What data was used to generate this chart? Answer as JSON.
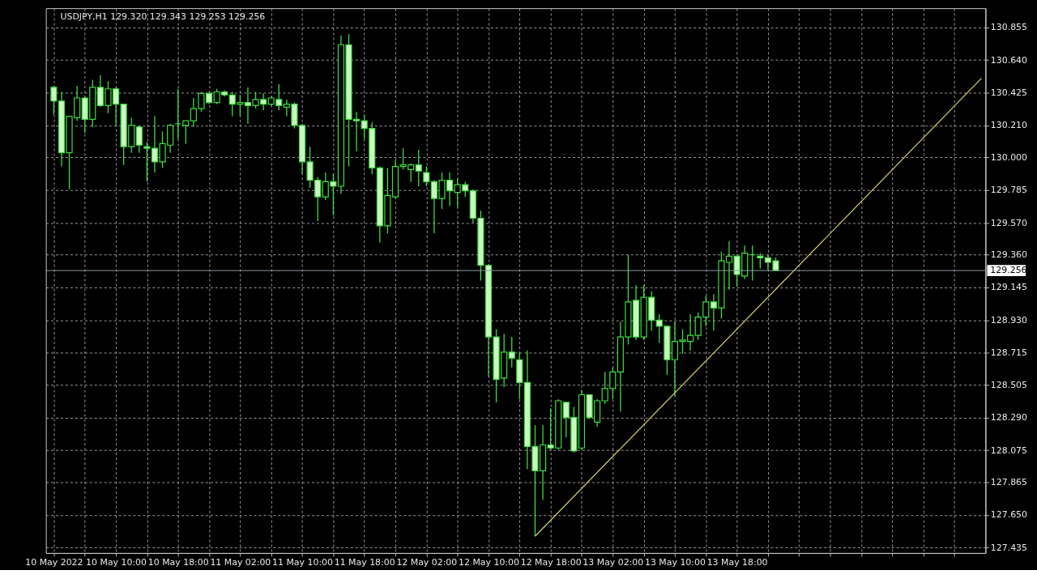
{
  "chart_data": {
    "type": "candlestick",
    "title": "USDJPY,H1  129.320 129.343 129.253 129.256",
    "color": "#3fdc3f",
    "grid": true,
    "x": [
      "2022-05-10T02:00",
      "2022-05-10T03:00",
      "2022-05-10T04:00",
      "2022-05-10T05:00",
      "2022-05-10T06:00",
      "2022-05-10T07:00",
      "2022-05-10T08:00",
      "2022-05-10T09:00",
      "2022-05-10T10:00",
      "2022-05-10T11:00",
      "2022-05-10T12:00",
      "2022-05-10T13:00",
      "2022-05-10T14:00",
      "2022-05-10T15:00",
      "2022-05-10T16:00",
      "2022-05-10T17:00",
      "2022-05-10T18:00",
      "2022-05-10T19:00",
      "2022-05-10T20:00",
      "2022-05-10T21:00",
      "2022-05-10T22:00",
      "2022-05-10T23:00",
      "2022-05-11T00:00",
      "2022-05-11T01:00",
      "2022-05-11T02:00",
      "2022-05-11T03:00",
      "2022-05-11T04:00",
      "2022-05-11T05:00",
      "2022-05-11T06:00",
      "2022-05-11T07:00",
      "2022-05-11T08:00",
      "2022-05-11T09:00",
      "2022-05-11T10:00",
      "2022-05-11T11:00",
      "2022-05-11T12:00",
      "2022-05-11T13:00",
      "2022-05-11T14:00",
      "2022-05-11T15:00",
      "2022-05-11T16:00",
      "2022-05-11T17:00",
      "2022-05-11T18:00",
      "2022-05-11T19:00",
      "2022-05-11T20:00",
      "2022-05-11T21:00",
      "2022-05-11T22:00",
      "2022-05-11T23:00",
      "2022-05-12T00:00",
      "2022-05-12T01:00",
      "2022-05-12T02:00",
      "2022-05-12T03:00",
      "2022-05-12T04:00",
      "2022-05-12T05:00",
      "2022-05-12T06:00",
      "2022-05-12T07:00",
      "2022-05-12T08:00",
      "2022-05-12T09:00",
      "2022-05-12T10:00",
      "2022-05-12T11:00",
      "2022-05-12T12:00",
      "2022-05-12T13:00",
      "2022-05-12T14:00",
      "2022-05-12T15:00",
      "2022-05-12T16:00",
      "2022-05-12T17:00",
      "2022-05-12T18:00",
      "2022-05-12T19:00",
      "2022-05-12T20:00",
      "2022-05-12T21:00",
      "2022-05-12T22:00",
      "2022-05-12T23:00",
      "2022-05-13T00:00",
      "2022-05-13T01:00",
      "2022-05-13T02:00",
      "2022-05-13T03:00",
      "2022-05-13T04:00",
      "2022-05-13T05:00",
      "2022-05-13T06:00",
      "2022-05-13T07:00",
      "2022-05-13T08:00",
      "2022-05-13T09:00",
      "2022-05-13T10:00",
      "2022-05-13T11:00",
      "2022-05-13T12:00",
      "2022-05-13T13:00",
      "2022-05-13T14:00",
      "2022-05-13T15:00",
      "2022-05-13T16:00",
      "2022-05-13T17:00",
      "2022-05-13T18:00",
      "2022-05-13T19:00",
      "2022-05-13T20:00",
      "2022-05-13T21:00",
      "2022-05-13T22:00",
      "2022-05-13T23:00"
    ],
    "ohlc": [
      [
        130.46,
        130.47,
        130.28,
        130.37
      ],
      [
        130.37,
        130.43,
        129.94,
        130.03
      ],
      [
        130.03,
        130.27,
        129.79,
        130.27
      ],
      [
        130.26,
        130.47,
        130.24,
        130.39
      ],
      [
        130.39,
        130.4,
        130.16,
        130.25
      ],
      [
        130.25,
        130.51,
        130.2,
        130.46
      ],
      [
        130.46,
        130.54,
        130.33,
        130.34
      ],
      [
        130.34,
        130.5,
        130.29,
        130.45
      ],
      [
        130.45,
        130.46,
        130.21,
        130.35
      ],
      [
        130.35,
        130.35,
        129.95,
        130.07
      ],
      [
        130.07,
        130.26,
        130.03,
        130.21
      ],
      [
        130.2,
        130.21,
        130.03,
        130.08
      ],
      [
        130.07,
        130.1,
        129.84,
        130.06
      ],
      [
        130.06,
        130.27,
        129.9,
        129.97
      ],
      [
        129.97,
        130.17,
        129.93,
        130.09
      ],
      [
        130.08,
        130.22,
        130.03,
        130.21
      ],
      [
        130.22,
        130.45,
        130.12,
        130.22
      ],
      [
        130.21,
        130.24,
        130.09,
        130.24
      ],
      [
        130.24,
        130.39,
        130.2,
        130.32
      ],
      [
        130.32,
        130.43,
        130.3,
        130.42
      ],
      [
        130.42,
        130.43,
        130.35,
        130.36
      ],
      [
        130.36,
        130.45,
        130.35,
        130.43
      ],
      [
        130.43,
        130.44,
        130.4,
        130.41
      ],
      [
        130.41,
        130.43,
        130.27,
        130.35
      ],
      [
        130.35,
        130.41,
        130.27,
        130.36
      ],
      [
        130.36,
        130.46,
        130.22,
        130.34
      ],
      [
        130.34,
        130.43,
        130.32,
        130.38
      ],
      [
        130.38,
        130.42,
        130.31,
        130.35
      ],
      [
        130.35,
        130.4,
        130.34,
        130.39
      ],
      [
        130.38,
        130.48,
        130.31,
        130.34
      ],
      [
        130.33,
        130.38,
        130.27,
        130.35
      ],
      [
        130.35,
        130.36,
        130.19,
        130.21
      ],
      [
        130.21,
        130.22,
        129.89,
        129.97
      ],
      [
        129.97,
        130.07,
        129.8,
        129.85
      ],
      [
        129.85,
        129.87,
        129.58,
        129.74
      ],
      [
        129.74,
        129.9,
        129.72,
        129.84
      ],
      [
        129.84,
        129.89,
        129.62,
        129.81
      ],
      [
        129.81,
        130.8,
        129.76,
        130.74
      ],
      [
        130.74,
        130.81,
        129.94,
        130.25
      ],
      [
        130.25,
        130.3,
        130.04,
        130.24
      ],
      [
        130.24,
        130.28,
        130.12,
        130.19
      ],
      [
        130.19,
        130.23,
        129.89,
        129.93
      ],
      [
        129.93,
        129.94,
        129.44,
        129.55
      ],
      [
        129.55,
        129.93,
        129.5,
        129.75
      ],
      [
        129.74,
        129.98,
        129.73,
        129.94
      ],
      [
        129.94,
        130.06,
        129.92,
        129.95
      ],
      [
        129.92,
        129.96,
        129.84,
        129.95
      ],
      [
        129.95,
        130.05,
        129.81,
        129.91
      ],
      [
        129.9,
        129.94,
        129.81,
        129.84
      ],
      [
        129.84,
        129.85,
        129.5,
        129.73
      ],
      [
        129.73,
        129.9,
        129.66,
        129.85
      ],
      [
        129.85,
        129.9,
        129.68,
        129.78
      ],
      [
        129.77,
        129.86,
        129.67,
        129.82
      ],
      [
        129.82,
        129.84,
        129.74,
        129.78
      ],
      [
        129.78,
        129.79,
        129.57,
        129.6
      ],
      [
        129.6,
        129.65,
        129.19,
        129.29
      ],
      [
        129.29,
        129.3,
        128.56,
        128.82
      ],
      [
        128.82,
        128.87,
        128.39,
        128.54
      ],
      [
        128.55,
        128.84,
        128.49,
        128.72
      ],
      [
        128.72,
        128.82,
        128.62,
        128.68
      ],
      [
        128.67,
        128.72,
        128.41,
        128.52
      ],
      [
        128.52,
        128.73,
        127.95,
        128.1
      ],
      [
        128.1,
        128.24,
        127.51,
        127.94
      ],
      [
        127.94,
        128.24,
        127.75,
        128.11
      ],
      [
        128.11,
        128.35,
        128.08,
        128.09
      ],
      [
        128.09,
        128.41,
        128.08,
        128.4
      ],
      [
        128.39,
        128.39,
        128.16,
        128.29
      ],
      [
        128.29,
        128.36,
        128.06,
        128.07
      ],
      [
        128.09,
        128.47,
        128.08,
        128.44
      ],
      [
        128.44,
        128.44,
        128.28,
        128.29
      ],
      [
        128.26,
        128.41,
        128.23,
        128.4
      ],
      [
        128.4,
        128.59,
        128.38,
        128.48
      ],
      [
        128.48,
        128.62,
        128.41,
        128.59
      ],
      [
        128.59,
        128.92,
        128.33,
        128.82
      ],
      [
        128.82,
        129.36,
        128.77,
        129.05
      ],
      [
        129.06,
        129.16,
        128.8,
        128.82
      ],
      [
        128.82,
        129.16,
        128.8,
        129.08
      ],
      [
        129.08,
        129.12,
        128.86,
        128.93
      ],
      [
        128.93,
        128.97,
        128.78,
        128.89
      ],
      [
        128.89,
        128.89,
        128.57,
        128.67
      ],
      [
        128.67,
        128.92,
        128.43,
        128.79
      ],
      [
        128.79,
        128.87,
        128.71,
        128.8
      ],
      [
        128.79,
        128.97,
        128.73,
        128.83
      ],
      [
        128.83,
        128.98,
        128.8,
        128.95
      ],
      [
        128.95,
        129.09,
        128.89,
        129.05
      ],
      [
        129.05,
        129.1,
        128.86,
        129.01
      ],
      [
        129.01,
        129.38,
        128.94,
        129.32
      ],
      [
        129.31,
        129.45,
        129.13,
        129.35
      ],
      [
        129.35,
        129.36,
        129.15,
        129.23
      ],
      [
        129.22,
        129.42,
        129.2,
        129.37
      ],
      [
        129.36,
        129.42,
        129.19,
        129.36
      ],
      [
        129.35,
        129.37,
        129.27,
        129.34
      ],
      [
        129.34,
        129.36,
        129.26,
        129.31
      ],
      [
        129.32,
        129.343,
        129.253,
        129.256
      ]
    ],
    "series": [
      {
        "type": "line",
        "color": "#d6d36a",
        "x": [
          "2022-05-12T16:00",
          "2022-05-15T01:30"
        ],
        "values": [
          127.51,
          130.52
        ]
      }
    ],
    "ref_lines": [
      {
        "axis": "y",
        "value": 129.256,
        "label": "129.256",
        "color": "#8c9aa6"
      }
    ],
    "xlim": [
      "2022-05-10T01:30",
      "2022-05-15T01:30"
    ],
    "xticks": [
      {
        "value": "2022-05-10T02:00",
        "label": "10 May 2022"
      },
      {
        "value": "2022-05-10T06:00",
        "label": null
      },
      {
        "value": "2022-05-10T10:00",
        "label": "10 May 10:00"
      },
      {
        "value": "2022-05-10T14:00",
        "label": null
      },
      {
        "value": "2022-05-10T18:00",
        "label": "10 May 18:00"
      },
      {
        "value": "2022-05-10T22:00",
        "label": null
      },
      {
        "value": "2022-05-11T02:00",
        "label": "11 May 02:00"
      },
      {
        "value": "2022-05-11T06:00",
        "label": null
      },
      {
        "value": "2022-05-11T10:00",
        "label": "11 May 10:00"
      },
      {
        "value": "2022-05-11T14:00",
        "label": null
      },
      {
        "value": "2022-05-11T18:00",
        "label": "11 May 18:00"
      },
      {
        "value": "2022-05-11T22:00",
        "label": null
      },
      {
        "value": "2022-05-12T02:00",
        "label": "12 May 02:00"
      },
      {
        "value": "2022-05-12T06:00",
        "label": null
      },
      {
        "value": "2022-05-12T10:00",
        "label": "12 May 10:00"
      },
      {
        "value": "2022-05-12T14:00",
        "label": null
      },
      {
        "value": "2022-05-12T18:00",
        "label": "12 May 18:00"
      },
      {
        "value": "2022-05-12T22:00",
        "label": null
      },
      {
        "value": "2022-05-13T02:00",
        "label": "13 May 02:00"
      },
      {
        "value": "2022-05-13T06:00",
        "label": null
      },
      {
        "value": "2022-05-13T10:00",
        "label": "13 May 10:00"
      },
      {
        "value": "2022-05-13T14:00",
        "label": null
      },
      {
        "value": "2022-05-13T18:00",
        "label": "13 May 18:00"
      },
      {
        "value": "2022-05-13T22:00",
        "label": null
      },
      {
        "value": "2022-05-14T02:00",
        "label": null
      },
      {
        "value": "2022-05-14T06:00",
        "label": null
      },
      {
        "value": "2022-05-14T10:00",
        "label": null
      },
      {
        "value": "2022-05-14T14:00",
        "label": null
      },
      {
        "value": "2022-05-14T18:00",
        "label": null
      },
      {
        "value": "2022-05-14T22:00",
        "label": null
      }
    ],
    "ylim": [
      127.4,
      130.98
    ],
    "yticks": [
      130.855,
      {
        "value": 130.64,
        "label": "130.640"
      },
      130.425,
      {
        "value": 130.21,
        "label": "130.210"
      },
      {
        "value": 130.0,
        "label": "130.000"
      },
      129.785,
      {
        "value": 129.57,
        "label": "129.570"
      },
      {
        "value": 129.36,
        "label": "129.360"
      },
      129.145,
      {
        "value": 128.93,
        "label": "128.930"
      },
      128.715,
      128.505,
      {
        "value": 128.29,
        "label": "128.290"
      },
      128.075,
      127.865,
      {
        "value": 127.65,
        "label": "127.650"
      },
      127.435
    ]
  }
}
